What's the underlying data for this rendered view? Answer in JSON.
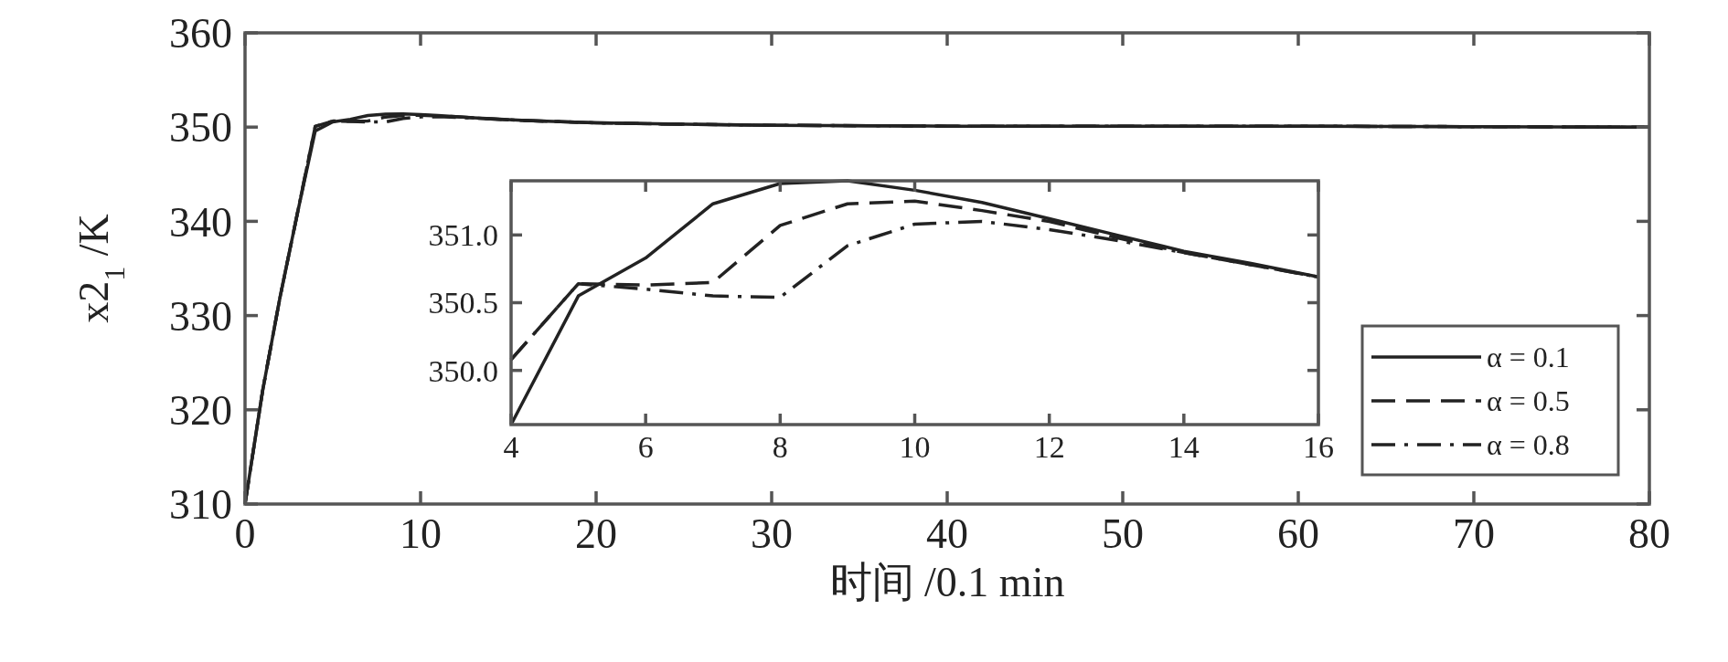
{
  "chart_data": [
    {
      "type": "line",
      "xlabel": "时间 /0.1 min",
      "ylabel": "x2$_{1}$ /K",
      "x": [
        0,
        1,
        2,
        3,
        4,
        5,
        6,
        7,
        8,
        9,
        10,
        11,
        12,
        13,
        14,
        15,
        16,
        20,
        25,
        30,
        40,
        50,
        60,
        70,
        80
      ],
      "xlim": [
        0,
        80
      ],
      "ylim": [
        310,
        360
      ],
      "xticks": [
        0,
        10,
        20,
        30,
        40,
        50,
        60,
        70,
        80
      ],
      "yticks": [
        310,
        320,
        330,
        340,
        350,
        360
      ],
      "grid": false,
      "legend": "bottom right",
      "marker": "none",
      "series": [
        {
          "name": "α = 0.1",
          "color": "#222222",
          "line_style": "solid",
          "values": [
            310,
            322,
            332,
            341,
            349.6,
            350.55,
            350.83,
            351.23,
            351.38,
            351.4,
            351.33,
            351.24,
            351.12,
            351.0,
            350.88,
            350.79,
            350.69,
            350.45,
            350.3,
            350.2,
            350.1,
            350.1,
            350.1,
            350.05,
            350.0
          ]
        },
        {
          "name": "α = 0.5",
          "color": "#222222",
          "line_style": "dashed",
          "values": [
            310,
            322,
            332,
            341,
            350.08,
            350.64,
            350.63,
            350.65,
            351.07,
            351.23,
            351.25,
            351.18,
            351.1,
            350.98,
            350.87,
            350.78,
            350.69,
            350.45,
            350.3,
            350.2,
            350.1,
            350.1,
            350.1,
            350.05,
            350.0
          ]
        },
        {
          "name": "α = 0.8",
          "color": "#222222",
          "line_style": "dashdot",
          "values": [
            310,
            322,
            332,
            341,
            350.08,
            350.64,
            350.6,
            350.55,
            350.54,
            350.92,
            351.08,
            351.1,
            351.04,
            350.96,
            350.87,
            350.78,
            350.69,
            350.45,
            350.3,
            350.2,
            350.1,
            350.1,
            350.1,
            350.05,
            350.0
          ]
        }
      ]
    },
    {
      "type": "line",
      "x": [
        4,
        5,
        6,
        7,
        8,
        9,
        10,
        11,
        12,
        13,
        14,
        15,
        16
      ],
      "xlim": [
        4,
        16
      ],
      "ylim": [
        349.6,
        351.4
      ],
      "xticks": [
        4,
        6,
        8,
        10,
        12,
        14,
        16
      ],
      "yticks": [
        {
          "value": 350,
          "label": "350.0"
        },
        {
          "value": 350.5,
          "label": "350.5"
        },
        {
          "value": 351,
          "label": "351.0"
        }
      ],
      "grid": false,
      "legend": false,
      "marker": "none",
      "series": [
        {
          "color": "#222222",
          "line_style": "solid",
          "values": [
            349.6,
            350.55,
            350.83,
            351.23,
            351.38,
            351.4,
            351.33,
            351.24,
            351.12,
            351.0,
            350.88,
            350.79,
            350.69
          ]
        },
        {
          "color": "#222222",
          "line_style": "dashed",
          "values": [
            350.08,
            350.64,
            350.63,
            350.65,
            351.07,
            351.23,
            351.25,
            351.18,
            351.1,
            350.98,
            350.87,
            350.78,
            350.69
          ]
        },
        {
          "color": "#222222",
          "line_style": "dashdot",
          "values": [
            350.08,
            350.64,
            350.6,
            350.55,
            350.54,
            350.92,
            351.08,
            351.1,
            351.04,
            350.96,
            350.87,
            350.78,
            350.69
          ]
        }
      ]
    }
  ]
}
